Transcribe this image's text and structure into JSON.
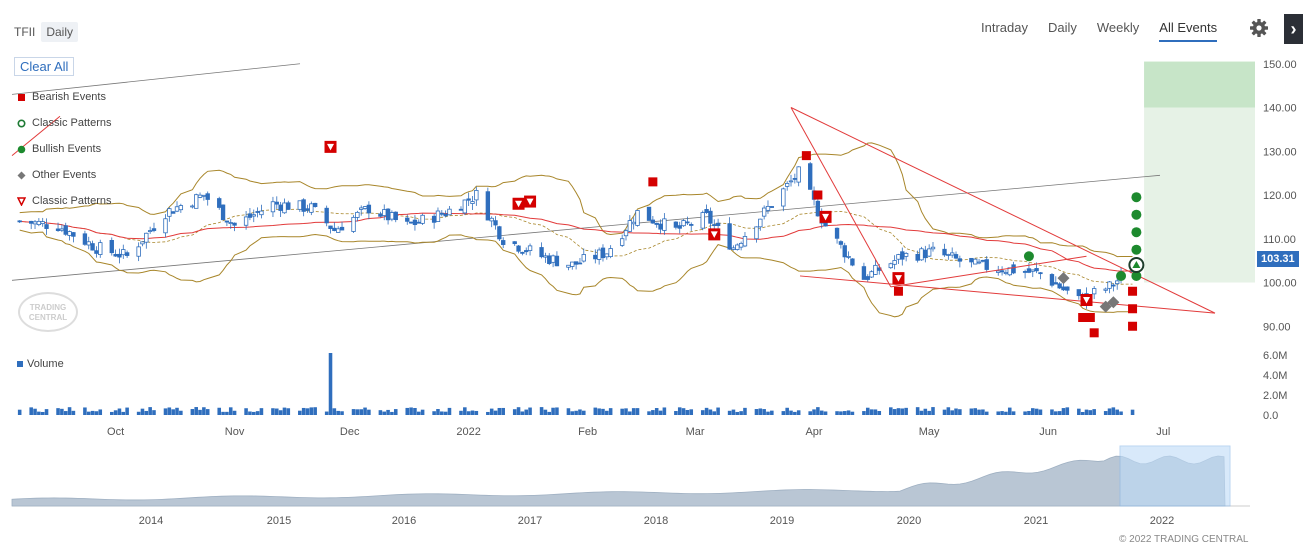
{
  "header": {
    "ticker": "TFII",
    "period": "Daily",
    "tabs": [
      {
        "label": "Intraday",
        "active": false
      },
      {
        "label": "Daily",
        "active": false
      },
      {
        "label": "Weekly",
        "active": false
      },
      {
        "label": "All Events",
        "active": true
      }
    ]
  },
  "controls": {
    "clear_all": "Clear All"
  },
  "legend": [
    {
      "label": "Bearish Events",
      "shape": "square",
      "color": "#d40000"
    },
    {
      "label": "Classic Patterns",
      "shape": "ring",
      "color": "#1d7a33"
    },
    {
      "label": "Bullish Events",
      "shape": "circle",
      "color": "#1d8a2e"
    },
    {
      "label": "Other Events",
      "shape": "diamond",
      "color": "#777777"
    },
    {
      "label": "Classic Patterns",
      "shape": "triangle-down",
      "color": "#d40000"
    }
  ],
  "volume_legend": "Volume",
  "last_price": "103.31",
  "copyright": "© 2022 TRADING CENTRAL",
  "logo_text": "TRADING CENTRAL",
  "colors": {
    "up": "#2f6ebd",
    "bollinger": "#a8862a",
    "ma": "#e23b3b",
    "bearish": "#d40000",
    "bullish": "#1d8a2e",
    "target_zone": "#e6f2e6",
    "target_zone_dark": "#c7e5c8",
    "navigator_fill": "#b9c6d4",
    "navigator_window": "#bfdcf8"
  },
  "chart_data": [
    {
      "type": "candlestick",
      "title": "",
      "y_ticks": [
        "150.00",
        "140.00",
        "130.00",
        "120.00",
        "110.00",
        "100.00",
        "90.00"
      ],
      "ylim": [
        88,
        152
      ],
      "x_ticks": [
        "Oct",
        "Nov",
        "Dec",
        "2022",
        "Feb",
        "Mar",
        "Apr",
        "May",
        "Jun",
        "Jul"
      ],
      "close_path": [
        {
          "date": "2021-09-10",
          "close": 114
        },
        {
          "date": "2021-09-20",
          "close": 113
        },
        {
          "date": "2021-09-30",
          "close": 108
        },
        {
          "date": "2021-10-08",
          "close": 106
        },
        {
          "date": "2021-10-18",
          "close": 116
        },
        {
          "date": "2021-10-28",
          "close": 120
        },
        {
          "date": "2021-11-05",
          "close": 113
        },
        {
          "date": "2021-11-15",
          "close": 118
        },
        {
          "date": "2021-11-25",
          "close": 117
        },
        {
          "date": "2021-12-01",
          "close": 112
        },
        {
          "date": "2021-12-10",
          "close": 117
        },
        {
          "date": "2021-12-20",
          "close": 113
        },
        {
          "date": "2021-12-30",
          "close": 116
        },
        {
          "date": "2022-01-07",
          "close": 120
        },
        {
          "date": "2022-01-14",
          "close": 110
        },
        {
          "date": "2022-01-24",
          "close": 106
        },
        {
          "date": "2022-02-01",
          "close": 104
        },
        {
          "date": "2022-02-10",
          "close": 107
        },
        {
          "date": "2022-02-18",
          "close": 116
        },
        {
          "date": "2022-02-28",
          "close": 112
        },
        {
          "date": "2022-03-08",
          "close": 115
        },
        {
          "date": "2022-03-15",
          "close": 108
        },
        {
          "date": "2022-03-25",
          "close": 118
        },
        {
          "date": "2022-04-01",
          "close": 125
        },
        {
          "date": "2022-04-08",
          "close": 113
        },
        {
          "date": "2022-04-18",
          "close": 101
        },
        {
          "date": "2022-04-28",
          "close": 106
        },
        {
          "date": "2022-05-06",
          "close": 107
        },
        {
          "date": "2022-05-16",
          "close": 104
        },
        {
          "date": "2022-05-26",
          "close": 103
        },
        {
          "date": "2022-06-03",
          "close": 102
        },
        {
          "date": "2022-06-13",
          "close": 96
        },
        {
          "date": "2022-06-21",
          "close": 99
        },
        {
          "date": "2022-06-27",
          "close": 103.31
        }
      ]
    },
    {
      "type": "bar",
      "title": "Volume",
      "y_ticks": [
        "6.0M",
        "4.0M",
        "2.0M",
        "0.0"
      ],
      "ylim": [
        0,
        6.5
      ],
      "spike": {
        "date": "2021-11-30",
        "value": 6.2
      }
    },
    {
      "type": "area",
      "title": "",
      "x_ticks": [
        "2014",
        "2015",
        "2016",
        "2017",
        "2018",
        "2019",
        "2020",
        "2021",
        "2022"
      ],
      "selected_range": [
        "2021-09",
        "2022-07"
      ]
    }
  ]
}
